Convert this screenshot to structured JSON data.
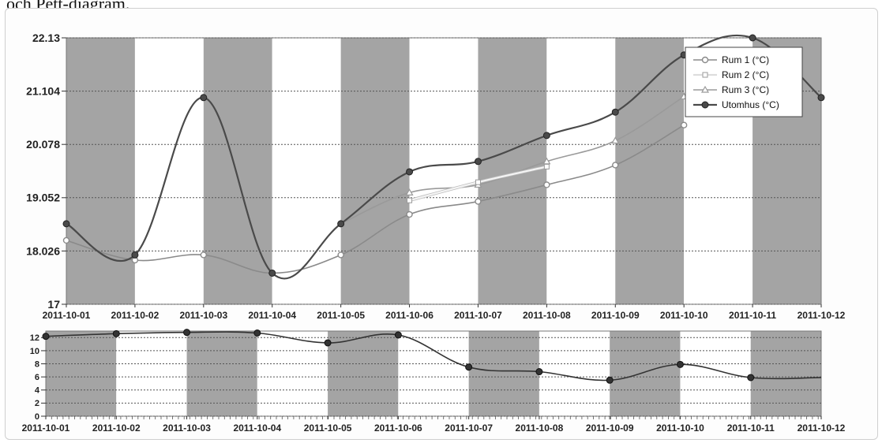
{
  "caption": "och Pett-diagram.",
  "colors": {
    "band_shaded": "#a4a4a4",
    "band_light": "#ffffff",
    "grid": "#555555",
    "rum1": "#8a8a8a",
    "rum2": "#f4f4f4",
    "rum3": "#9a9a9a",
    "utomhus": "#4a4a4a"
  },
  "chart_data": [
    {
      "type": "line",
      "title": "",
      "xlabel": "",
      "ylabel": "",
      "categories": [
        "2011-10-01",
        "2011-10-02",
        "2011-10-03",
        "2011-10-04",
        "2011-10-05",
        "2011-10-06",
        "2011-10-07",
        "2011-10-08",
        "2011-10-09",
        "2011-10-10",
        "2011-10-11",
        "2011-10-12"
      ],
      "y_ticks": [
        "17",
        "18.026",
        "19.052",
        "20.078",
        "21.104",
        "22.13"
      ],
      "ylim": [
        17,
        22.13
      ],
      "grid": true,
      "legend_position": "top-right",
      "legend": [
        "Rum 1 (°C)",
        "Rum 2 (°C)",
        "Rum 3 (°C)",
        "Utomhus (°C)"
      ],
      "series": [
        {
          "name": "Rum 1 (°C)",
          "values": [
            18.23,
            17.85,
            17.95,
            17.6,
            17.95,
            18.73,
            18.98,
            19.3,
            19.68,
            20.45,
            null,
            null
          ]
        },
        {
          "name": "Rum 2 (°C)",
          "values": [
            null,
            null,
            null,
            null,
            null,
            19.0,
            19.35,
            19.65,
            null,
            null,
            null,
            null
          ]
        },
        {
          "name": "Rum 3 (°C)",
          "values": [
            null,
            null,
            null,
            null,
            18.55,
            19.15,
            19.3,
            19.75,
            20.15,
            21.0,
            null,
            null
          ]
        },
        {
          "name": "Utomhus (°C)",
          "values": [
            18.55,
            17.95,
            20.98,
            17.6,
            18.55,
            19.55,
            19.75,
            20.25,
            20.7,
            21.8,
            22.13,
            20.98
          ]
        }
      ]
    },
    {
      "type": "line",
      "title": "",
      "categories": [
        "2011-10-01",
        "2011-10-02",
        "2011-10-03",
        "2011-10-04",
        "2011-10-05",
        "2011-10-06",
        "2011-10-07",
        "2011-10-08",
        "2011-10-09",
        "2011-10-10",
        "2011-10-11",
        "2011-10-12"
      ],
      "y_ticks": [
        "0",
        "2",
        "4",
        "6",
        "8",
        "10",
        "12"
      ],
      "ylim": [
        0,
        13
      ],
      "grid": true,
      "series": [
        {
          "name": "",
          "values": [
            12.2,
            12.6,
            12.8,
            12.7,
            11.2,
            12.4,
            7.5,
            6.8,
            5.5,
            7.9,
            5.9,
            5.9
          ]
        }
      ]
    }
  ]
}
